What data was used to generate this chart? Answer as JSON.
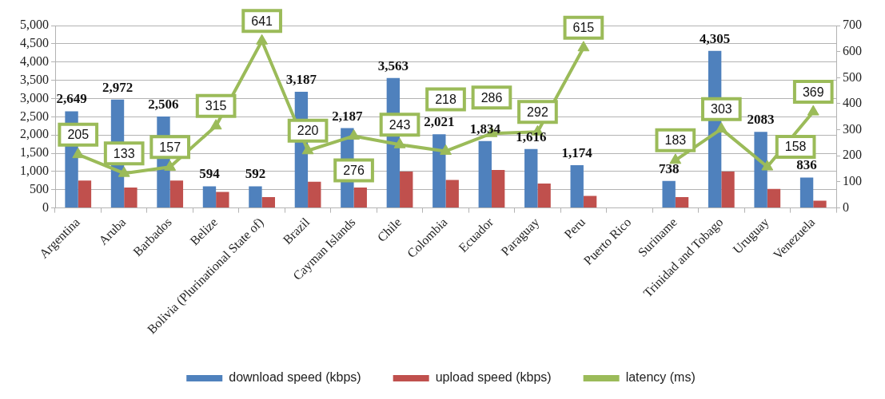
{
  "chart_data": {
    "type": "bar",
    "categories": [
      "Argentina",
      "Aruba",
      "Barbados",
      "Belize",
      "Bolivia (Plurinational State of)",
      "Brazil",
      "Cayman Islands",
      "Chile",
      "Colombia",
      "Ecuador",
      "Paraguay",
      "Peru",
      "Puerto Rico",
      "Suriname",
      "Trinidad and Tobago",
      "Uruguay",
      "Venezuela"
    ],
    "series": [
      {
        "name": "download speed (kbps)",
        "color": "#4f81bd",
        "values": [
          2649,
          2972,
          2506,
          594,
          592,
          3187,
          2187,
          3563,
          2021,
          1834,
          1616,
          1174,
          null,
          738,
          4305,
          2083,
          836
        ],
        "value_labels": [
          "2,649",
          "2,972",
          "2,506",
          "594",
          "592",
          "3,187",
          "2,187",
          "3,563",
          "2,021",
          "1,834",
          "1,616",
          "1,174",
          null,
          "738",
          "4,305",
          "2083",
          "836"
        ]
      },
      {
        "name": "upload speed (kbps)",
        "color": "#c0504d",
        "values": [
          750,
          560,
          750,
          440,
          300,
          720,
          560,
          1000,
          770,
          1040,
          670,
          330,
          null,
          300,
          1000,
          520,
          200
        ]
      },
      {
        "name": "latency (ms)",
        "type": "line",
        "axis": "y2",
        "color": "#9bbb59",
        "values": [
          205,
          133,
          157,
          315,
          641,
          220,
          276,
          243,
          218,
          286,
          292,
          615,
          null,
          183,
          303,
          158,
          369
        ],
        "value_labels": [
          "205",
          "133",
          "157",
          "315",
          "641",
          "220",
          "276",
          "243",
          "218",
          "286",
          "292",
          "615",
          null,
          "183",
          "303",
          "158",
          "369"
        ]
      }
    ],
    "ylim": [
      0,
      5000
    ],
    "yticks": [
      0,
      500,
      {
        "value": 1000,
        "label": "1,000"
      },
      {
        "value": 1500,
        "label": "1,500"
      },
      {
        "value": 2000,
        "label": "2,000"
      },
      {
        "value": 2500,
        "label": "2,500"
      },
      {
        "value": 3000,
        "label": "3,000"
      },
      {
        "value": 3500,
        "label": "3,500"
      },
      {
        "value": 4000,
        "label": "4,000"
      },
      {
        "value": 4500,
        "label": "4,500"
      },
      {
        "value": 5000,
        "label": "5,000"
      }
    ],
    "y2lim": [
      0,
      700
    ],
    "y2ticks": [
      0,
      100,
      200,
      300,
      400,
      500,
      600,
      700
    ],
    "grid": "y",
    "legend": "bottom",
    "marker": "triangle"
  }
}
